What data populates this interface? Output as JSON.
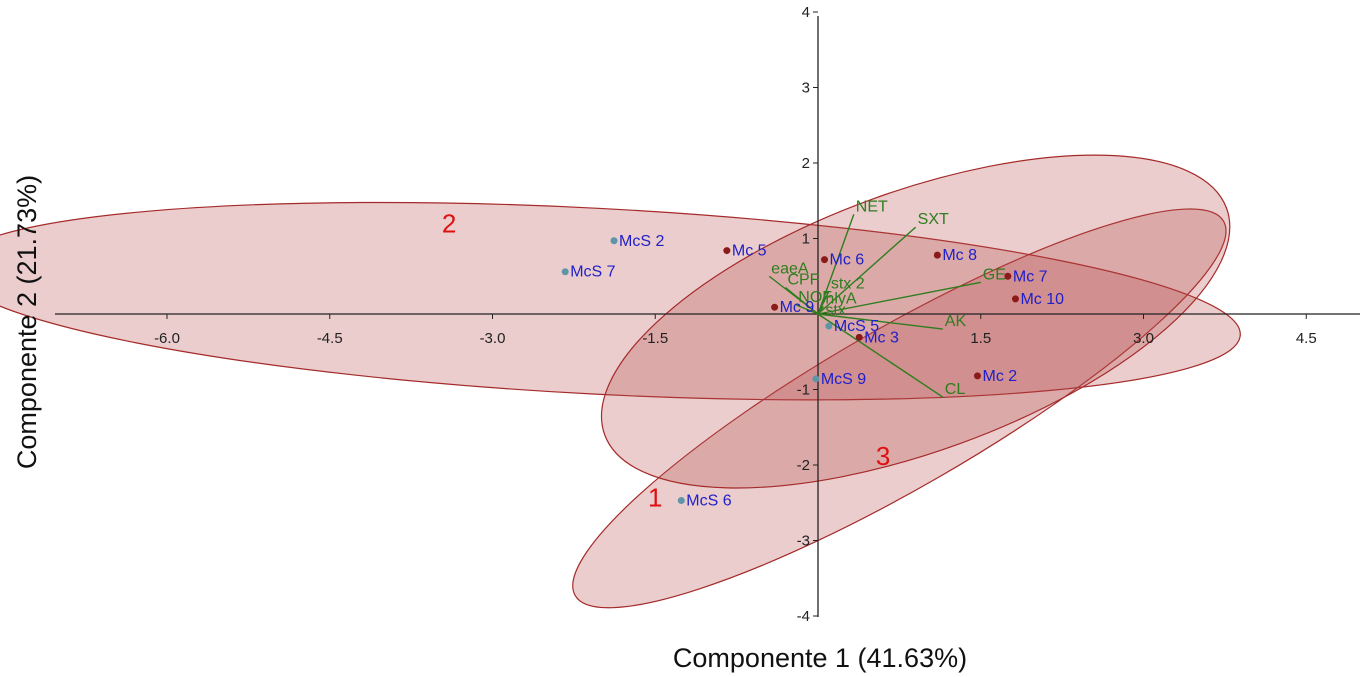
{
  "chart_data": {
    "type": "scatter",
    "subtype": "pca-biplot",
    "xlabel": "Componente 1 (41.63%)",
    "ylabel": "Componente 2 (21.73%)",
    "xlim": [
      -6.0,
      4.5
    ],
    "ylim": [
      -4,
      4
    ],
    "x_ticks": [
      -6.0,
      -4.5,
      -3.0,
      -1.5,
      1.5,
      3.0,
      4.5
    ],
    "x_tick_labels": [
      "-6.0",
      "-4.5",
      "-3.0",
      "-1.5",
      "1.5",
      "3.0",
      "4.5"
    ],
    "y_ticks": [
      4,
      3,
      2,
      1,
      -1,
      -2,
      -3,
      -4
    ],
    "y_tick_labels": [
      "4",
      "3",
      "2",
      "1",
      "-1",
      "-2",
      "-3",
      "-4"
    ],
    "grid": false,
    "colors": {
      "mc_point": "#8b1a1a",
      "mcs_point": "#5f95a8",
      "point_label": "#2020c8",
      "vector": "#2e7d1e",
      "ellipse_fill": "#b84c4c",
      "ellipse_stroke": "#a52a2a",
      "group_label": "#e01010",
      "axis": "#222222"
    },
    "points": [
      {
        "label": "McS 2",
        "x": -1.88,
        "y": 0.97,
        "group": "McS"
      },
      {
        "label": "McS 7",
        "x": -2.33,
        "y": 0.56,
        "group": "McS"
      },
      {
        "label": "Mc 5",
        "x": -0.84,
        "y": 0.84,
        "group": "Mc"
      },
      {
        "label": "Mc 6",
        "x": 0.06,
        "y": 0.72,
        "group": "Mc"
      },
      {
        "label": "Mc 8",
        "x": 1.1,
        "y": 0.78,
        "group": "Mc"
      },
      {
        "label": "Mc 7",
        "x": 1.75,
        "y": 0.5,
        "group": "Mc"
      },
      {
        "label": "Mc 10",
        "x": 1.82,
        "y": 0.2,
        "group": "Mc"
      },
      {
        "label": "Mc 9",
        "x": -0.4,
        "y": 0.09,
        "group": "Mc"
      },
      {
        "label": "McS 5",
        "x": 0.1,
        "y": -0.16,
        "group": "McS"
      },
      {
        "label": "Mc 3",
        "x": 0.38,
        "y": -0.31,
        "group": "Mc"
      },
      {
        "label": "McS 9",
        "x": -0.02,
        "y": -0.86,
        "group": "McS"
      },
      {
        "label": "Mc 2",
        "x": 1.47,
        "y": -0.82,
        "group": "Mc"
      },
      {
        "label": "McS 6",
        "x": -1.26,
        "y": -2.47,
        "group": "McS"
      }
    ],
    "vectors": [
      {
        "label": "NET",
        "x": 0.33,
        "y": 1.32
      },
      {
        "label": "SXT",
        "x": 0.9,
        "y": 1.15
      },
      {
        "label": "eaeA",
        "x": -0.45,
        "y": 0.5
      },
      {
        "label": "CPF",
        "x": -0.3,
        "y": 0.35
      },
      {
        "label": "stx 2",
        "x": 0.1,
        "y": 0.3
      },
      {
        "label": "NOF",
        "x": -0.2,
        "y": 0.12
      },
      {
        "label": "hlyA",
        "x": 0.05,
        "y": 0.1
      },
      {
        "label": "GE",
        "x": 1.5,
        "y": 0.42
      },
      {
        "label": "AK",
        "x": 1.15,
        "y": -0.2
      },
      {
        "label": "CL",
        "x": 1.15,
        "y": -1.1
      },
      {
        "label": "stx",
        "x": 0.05,
        "y": -0.05
      }
    ],
    "groups": [
      {
        "label": "1",
        "text_x": -1.5,
        "text_y": -2.55,
        "ellipse": {
          "cx": 0.75,
          "cy": -1.25,
          "rx": 3.45,
          "ry": 1.05,
          "angle_deg": 30
        }
      },
      {
        "label": "2",
        "text_x": -3.4,
        "text_y": 1.08,
        "ellipse": {
          "cx": -2.05,
          "cy": 0.17,
          "rx": 5.95,
          "ry": 1.23,
          "angle_deg": -3
        }
      },
      {
        "label": "3",
        "text_x": 0.6,
        "text_y": -2.0,
        "ellipse": {
          "cx": 0.9,
          "cy": -0.1,
          "rx": 3.05,
          "ry": 1.72,
          "angle_deg": 20
        }
      }
    ]
  }
}
